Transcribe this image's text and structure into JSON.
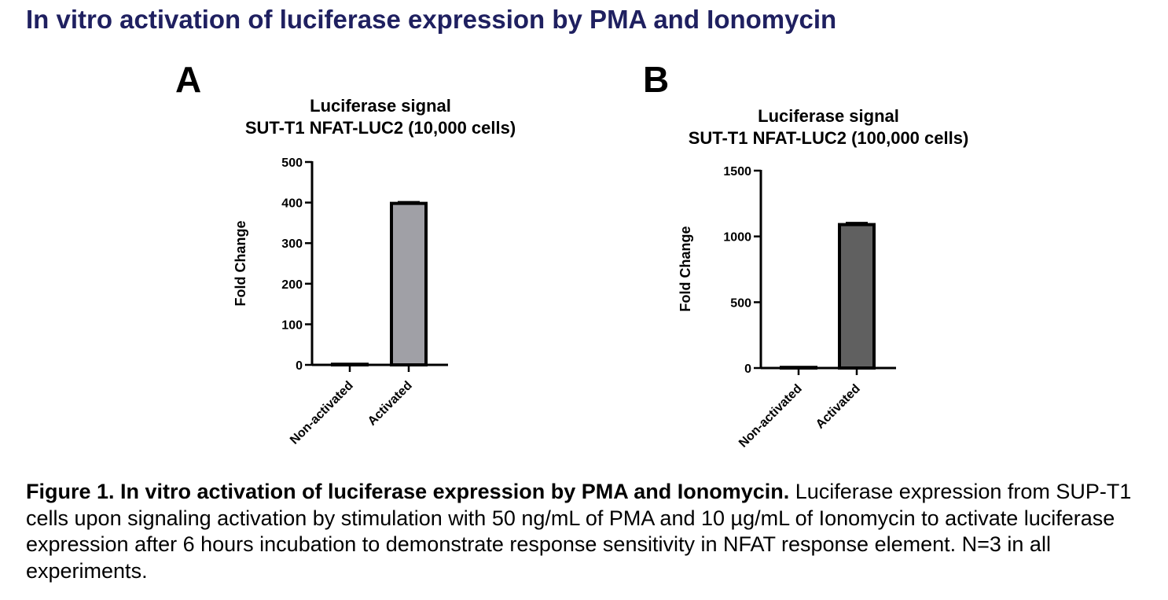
{
  "page_title": "In vitro activation of luciferase expression by PMA and Ionomycin",
  "panels": [
    {
      "letter": "A"
    },
    {
      "letter": "B"
    }
  ],
  "chart_data": [
    {
      "type": "bar",
      "title_lines": [
        "Luciferase signal",
        "SUT-T1 NFAT-LUC2 (10,000 cells)"
      ],
      "ylabel": "Fold Change",
      "categories": [
        "Non-activated",
        "Activated"
      ],
      "values": [
        1,
        398
      ],
      "errors": [
        0,
        4
      ],
      "ylim": [
        0,
        500
      ],
      "yticks": [
        0,
        100,
        200,
        300,
        400,
        500
      ],
      "bar_colors": [
        "#ffffff",
        "#a0a0a6"
      ],
      "grid": false
    },
    {
      "type": "bar",
      "title_lines": [
        "Luciferase signal",
        "SUT-T1 NFAT-LUC2 (100,000 cells)"
      ],
      "ylabel": "Fold Change",
      "categories": [
        "Non-activated",
        "Activated"
      ],
      "values": [
        1,
        1090
      ],
      "errors": [
        0,
        15
      ],
      "ylim": [
        0,
        1500
      ],
      "yticks": [
        0,
        500,
        1000,
        1500
      ],
      "bar_colors": [
        "#ffffff",
        "#606060"
      ],
      "grid": false
    }
  ],
  "caption": {
    "bold": "Figure 1. In vitro activation of luciferase expression by PMA and Ionomycin.",
    "text": " Luciferase expression from SUP-T1 cells upon signaling activation by stimulation with 50 ng/mL of PMA and 10 µg/mL of Ionomycin to activate luciferase expression after 6 hours incubation to demonstrate response sensitivity in NFAT response element. N=3 in all experiments."
  },
  "colors": {
    "title": "#1f2060",
    "axis": "#000000"
  }
}
